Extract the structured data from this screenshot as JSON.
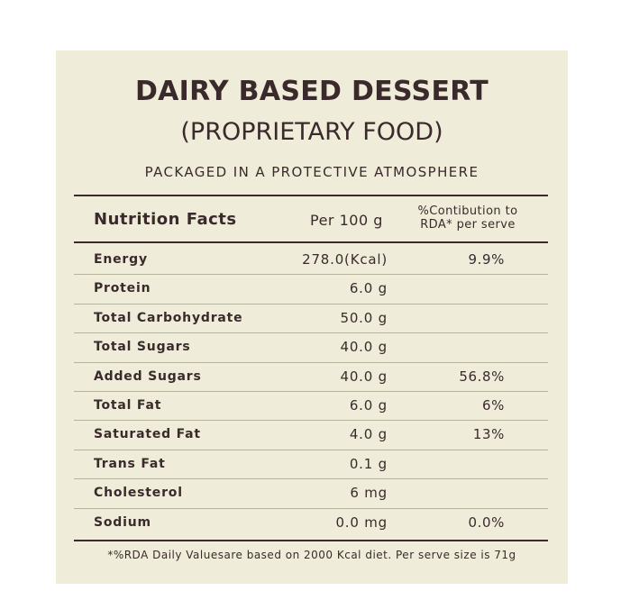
{
  "title": "DAIRY BASED DESSERT",
  "subtitle": "(PROPRIETARY FOOD)",
  "packaging": "PACKAGED IN A PROTECTIVE ATMOSPHERE",
  "colors": {
    "panel": "#efedd9",
    "text": "#3b2a2c",
    "row_divider": "#b7b39a"
  },
  "table": {
    "headers": {
      "name": "Nutrition Facts",
      "per": "Per 100 g",
      "rda_line1": "%Contibution to",
      "rda_line2": "RDA* per serve"
    },
    "rows": [
      {
        "name": "Energy",
        "value": "278.0(Kcal)",
        "rda": "9.9%"
      },
      {
        "name": "Protein",
        "value": "6.0 g",
        "rda": ""
      },
      {
        "name": "Total Carbohydrate",
        "value": "50.0 g",
        "rda": ""
      },
      {
        "name": "Total Sugars",
        "value": "40.0 g",
        "rda": ""
      },
      {
        "name": "Added Sugars",
        "value": "40.0 g",
        "rda": "56.8%"
      },
      {
        "name": "Total Fat",
        "value": "6.0 g",
        "rda": "6%"
      },
      {
        "name": "Saturated Fat",
        "value": "4.0 g",
        "rda": "13%"
      },
      {
        "name": "Trans Fat",
        "value": "0.1 g",
        "rda": ""
      },
      {
        "name": "Cholesterol",
        "value": "6 mg",
        "rda": ""
      },
      {
        "name": "Sodium",
        "value": "0.0 mg",
        "rda": "0.0%"
      }
    ]
  },
  "footnote": "*%RDA Daily Valuesare based on 2000 Kcal diet. Per serve size is 71g"
}
